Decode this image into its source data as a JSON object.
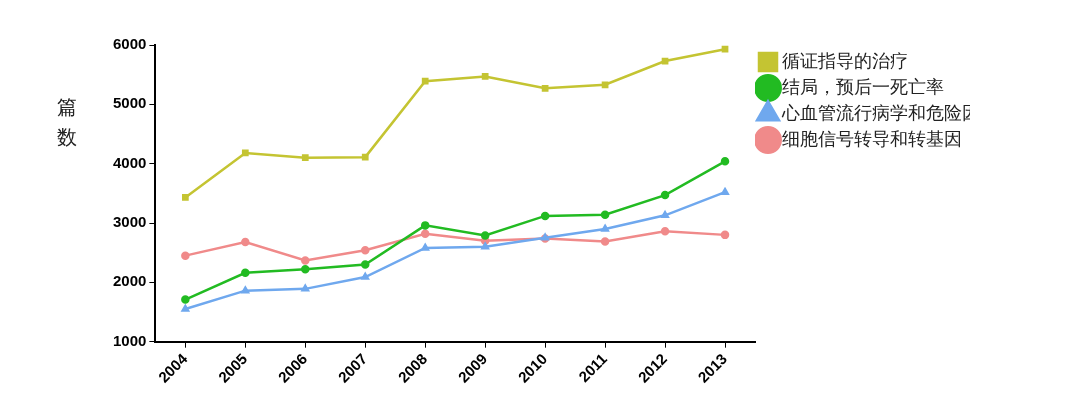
{
  "chart_data": {
    "type": "line",
    "y_label": "篇数",
    "categories": [
      "2004",
      "2005",
      "2006",
      "2007",
      "2008",
      "2009",
      "2010",
      "2011",
      "2012",
      "2013"
    ],
    "series": [
      {
        "name": "循证指导的治疗",
        "color": "#c4c432",
        "marker": "square",
        "values": [
          3430,
          4180,
          4100,
          4110,
          5390,
          5470,
          5270,
          5330,
          5730,
          5930
        ]
      },
      {
        "name": "结局，预后一死亡率",
        "color": "#22bb22",
        "marker": "circle",
        "values": [
          1710,
          2160,
          2220,
          2300,
          2960,
          2790,
          3120,
          3140,
          3470,
          4040
        ]
      },
      {
        "name": "心血管流行病学和危险因素",
        "color": "#6fa8ee",
        "marker": "triangle",
        "values": [
          1550,
          1860,
          1890,
          2090,
          2580,
          2600,
          2750,
          2900,
          3130,
          3520
        ]
      },
      {
        "name": "细胞信号转导和转基因",
        "color": "#f08a8a",
        "marker": "circle",
        "values": [
          2450,
          2680,
          2370,
          2540,
          2820,
          2700,
          2740,
          2690,
          2860,
          2800
        ]
      }
    ],
    "ylim": [
      1000,
      6000
    ],
    "yticks": [
      1000,
      2000,
      3000,
      4000,
      5000,
      6000
    ],
    "grid": false,
    "legend": "right"
  }
}
